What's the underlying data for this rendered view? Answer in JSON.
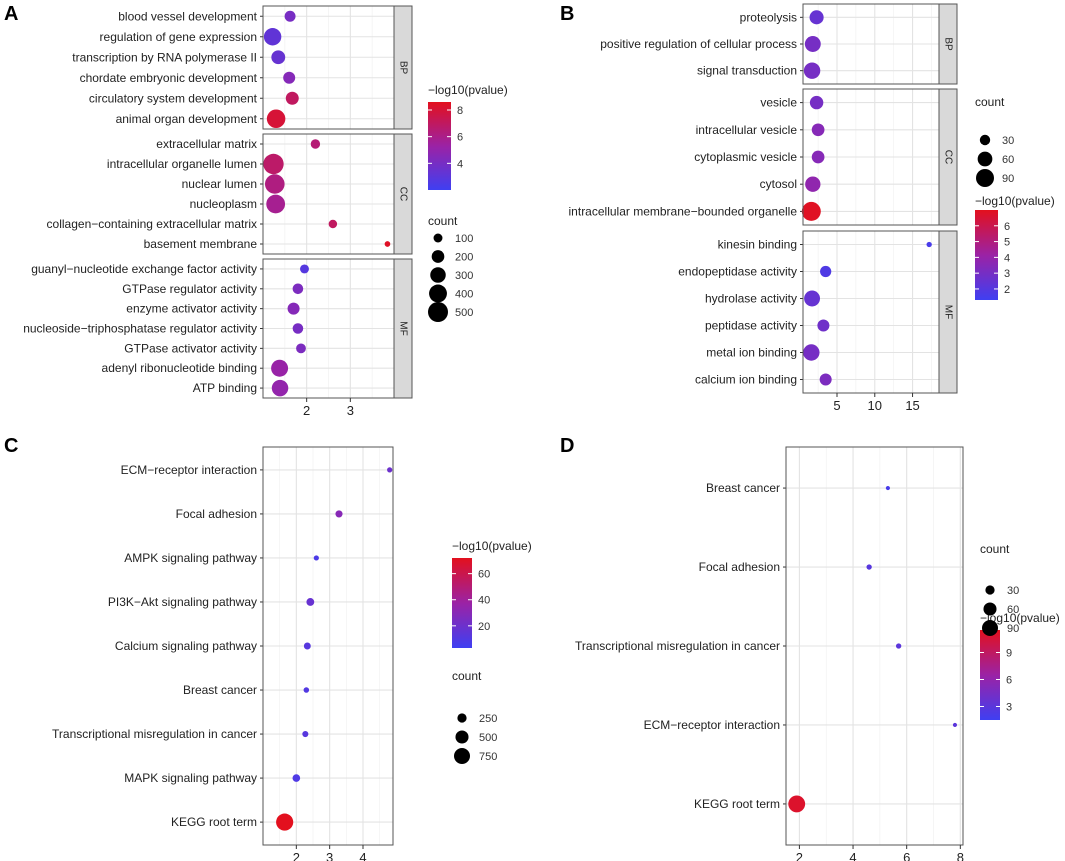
{
  "figure": {
    "title": ""
  },
  "chart_data": [
    {
      "panel": "A",
      "type": "scatter",
      "facet_groups": [
        {
          "name": "BP",
          "terms": [
            {
              "term": "blood vessel development",
              "x": 1.62,
              "count": 150,
              "neglog10p": 4.0
            },
            {
              "term": "regulation of gene expression",
              "x": 1.22,
              "count": 380,
              "neglog10p": 3.2
            },
            {
              "term": "transcription by RNA polymerase II",
              "x": 1.35,
              "count": 240,
              "neglog10p": 3.4
            },
            {
              "term": "chordate embryonic development",
              "x": 1.6,
              "count": 180,
              "neglog10p": 4.5
            },
            {
              "term": "circulatory system development",
              "x": 1.67,
              "count": 210,
              "neglog10p": 7.0
            },
            {
              "term": "animal organ development",
              "x": 1.3,
              "count": 430,
              "neglog10p": 8.0
            }
          ]
        },
        {
          "name": "CC",
          "terms": [
            {
              "term": "extracellular matrix",
              "x": 2.2,
              "count": 110,
              "neglog10p": 6.5
            },
            {
              "term": "intracellular organelle lumen",
              "x": 1.24,
              "count": 520,
              "neglog10p": 6.8
            },
            {
              "term": "nuclear lumen",
              "x": 1.27,
              "count": 480,
              "neglog10p": 6.2
            },
            {
              "term": "nucleoplasm",
              "x": 1.29,
              "count": 440,
              "neglog10p": 5.8
            },
            {
              "term": "collagen-containing extracellular matrix",
              "x": 2.6,
              "count": 90,
              "neglog10p": 7.0
            },
            {
              "term": "basement membrane",
              "x": 3.85,
              "count": 40,
              "neglog10p": 8.4
            }
          ]
        },
        {
          "name": "MF",
          "terms": [
            {
              "term": "guanyl-nucleotide exchange factor activity",
              "x": 1.95,
              "count": 100,
              "neglog10p": 2.8
            },
            {
              "term": "GTPase regulator activity",
              "x": 1.8,
              "count": 140,
              "neglog10p": 4.2
            },
            {
              "term": "enzyme activator activity",
              "x": 1.7,
              "count": 180,
              "neglog10p": 4.5
            },
            {
              "term": "nucleoside-triphosphatase regulator activity",
              "x": 1.8,
              "count": 140,
              "neglog10p": 4.0
            },
            {
              "term": "GTPase activator activity",
              "x": 1.87,
              "count": 120,
              "neglog10p": 4.2
            },
            {
              "term": "adenyl ribonucleotide binding",
              "x": 1.38,
              "count": 360,
              "neglog10p": 5.2
            },
            {
              "term": "ATP binding",
              "x": 1.39,
              "count": 340,
              "neglog10p": 5.0
            }
          ]
        }
      ],
      "xlim": [
        1.0,
        4.0
      ],
      "xticks": [
        2,
        3
      ],
      "color_legend": {
        "title": "-log10(pvalue)",
        "min": 2,
        "max": 8.6,
        "ticks": [
          4,
          6,
          8
        ]
      },
      "size_legend": {
        "title": "count",
        "values": [
          100,
          200,
          300,
          400,
          500
        ]
      }
    },
    {
      "panel": "B",
      "type": "scatter",
      "facet_groups": [
        {
          "name": "BP",
          "terms": [
            {
              "term": "proteolysis",
              "x": 2.3,
              "count": 55,
              "neglog10p": 2.5
            },
            {
              "term": "positive regulation of cellular process",
              "x": 1.8,
              "count": 70,
              "neglog10p": 3.0
            },
            {
              "term": "signal transduction",
              "x": 1.7,
              "count": 75,
              "neglog10p": 3.0
            }
          ]
        },
        {
          "name": "CC",
          "terms": [
            {
              "term": "vesicle",
              "x": 2.3,
              "count": 50,
              "neglog10p": 3.0
            },
            {
              "term": "intracellular vesicle",
              "x": 2.5,
              "count": 45,
              "neglog10p": 3.5
            },
            {
              "term": "cytoplasmic vesicle",
              "x": 2.5,
              "count": 45,
              "neglog10p": 3.5
            },
            {
              "term": "cytosol",
              "x": 1.8,
              "count": 65,
              "neglog10p": 3.8
            },
            {
              "term": "intracellular membrane-bounded organelle",
              "x": 1.6,
              "count": 100,
              "neglog10p": 6.9
            }
          ]
        },
        {
          "name": "MF",
          "terms": [
            {
              "term": "kinesin binding",
              "x": 17.2,
              "count": 8,
              "neglog10p": 1.6
            },
            {
              "term": "endopeptidase activity",
              "x": 3.5,
              "count": 35,
              "neglog10p": 1.8
            },
            {
              "term": "hydrolase activity",
              "x": 1.7,
              "count": 70,
              "neglog10p": 2.5
            },
            {
              "term": "peptidase activity",
              "x": 3.2,
              "count": 40,
              "neglog10p": 2.8
            },
            {
              "term": "metal ion binding",
              "x": 1.6,
              "count": 75,
              "neglog10p": 3.0
            },
            {
              "term": "calcium ion binding",
              "x": 3.5,
              "count": 40,
              "neglog10p": 3.2
            }
          ]
        }
      ],
      "xlim": [
        0.5,
        18.5
      ],
      "xticks": [
        5,
        10,
        15
      ],
      "color_legend": {
        "title": "-log10(pvalue)",
        "min": 1.3,
        "max": 7.0,
        "ticks": [
          2,
          3,
          4,
          5,
          6
        ]
      },
      "size_legend": {
        "title": "count",
        "values": [
          30,
          60,
          90
        ]
      }
    },
    {
      "panel": "C",
      "type": "scatter",
      "terms": [
        {
          "term": "ECM-receptor interaction",
          "x": 4.8,
          "count": 80,
          "neglog10p": 20
        },
        {
          "term": "Focal adhesion",
          "x": 3.28,
          "count": 150,
          "neglog10p": 30
        },
        {
          "term": "AMPK signaling pathway",
          "x": 2.6,
          "count": 80,
          "neglog10p": 8
        },
        {
          "term": "PI3K-Akt signaling pathway",
          "x": 2.42,
          "count": 180,
          "neglog10p": 18
        },
        {
          "term": "Calcium signaling pathway",
          "x": 2.33,
          "count": 140,
          "neglog10p": 12
        },
        {
          "term": "Breast cancer",
          "x": 2.3,
          "count": 90,
          "neglog10p": 10
        },
        {
          "term": "Transcriptional misregulation in cancer",
          "x": 2.27,
          "count": 110,
          "neglog10p": 12
        },
        {
          "term": "MAPK signaling pathway",
          "x": 2.0,
          "count": 170,
          "neglog10p": 9
        },
        {
          "term": "KEGG root term",
          "x": 1.65,
          "count": 860,
          "neglog10p": 72
        }
      ],
      "xlim": [
        1.0,
        4.9
      ],
      "xticks": [
        2,
        3,
        4
      ],
      "color_legend": {
        "title": "-log10(pvalue)",
        "min": 3,
        "max": 72,
        "ticks": [
          20,
          40,
          60
        ]
      },
      "size_legend": {
        "title": "count",
        "values": [
          250,
          500,
          750
        ]
      }
    },
    {
      "panel": "D",
      "type": "scatter",
      "terms": [
        {
          "term": "Breast cancer",
          "x": 5.3,
          "count": 6,
          "neglog10p": 2.0
        },
        {
          "term": "Focal adhesion",
          "x": 4.6,
          "count": 10,
          "neglog10p": 2.8
        },
        {
          "term": "Transcriptional misregulation in cancer",
          "x": 5.7,
          "count": 10,
          "neglog10p": 3.0
        },
        {
          "term": "ECM-receptor interaction",
          "x": 7.8,
          "count": 6,
          "neglog10p": 3.0
        },
        {
          "term": "KEGG root term",
          "x": 1.9,
          "count": 100,
          "neglog10p": 11.0
        }
      ],
      "xlim": [
        1.5,
        8.1
      ],
      "xticks": [
        2,
        4,
        6,
        8
      ],
      "color_legend": {
        "title": "-log10(pvalue)",
        "min": 1.5,
        "max": 11.5,
        "ticks": [
          3,
          6,
          9
        ]
      },
      "size_legend": {
        "title": "count",
        "values": [
          30,
          60,
          90
        ]
      }
    }
  ]
}
